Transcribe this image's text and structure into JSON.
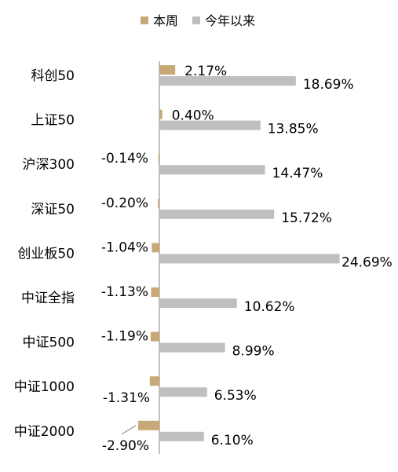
{
  "chart_data": {
    "type": "bar",
    "orientation": "horizontal",
    "categories": [
      "科创50",
      "上证50",
      "沪深300",
      "深证50",
      "创业板50",
      "中证全指",
      "中证500",
      "中证1000",
      "中证2000"
    ],
    "series": [
      {
        "name": "本周",
        "values": [
          2.17,
          0.4,
          -0.14,
          -0.2,
          -1.04,
          -1.13,
          -1.19,
          -1.31,
          -2.9
        ],
        "labels": [
          "2.17%",
          "0.40%",
          "-0.14%",
          "-0.20%",
          "-1.04%",
          "-1.13%",
          "-1.19%",
          "-1.31%",
          "-2.90%"
        ],
        "color": "#C9A878"
      },
      {
        "name": "今年以来",
        "values": [
          18.69,
          13.85,
          14.47,
          15.72,
          24.69,
          10.62,
          8.99,
          6.53,
          6.1
        ],
        "labels": [
          "18.69%",
          "13.85%",
          "14.47%",
          "15.72%",
          "24.69%",
          "10.62%",
          "8.99%",
          "6.53%",
          "6.10%"
        ],
        "color": "#BFBFBF"
      }
    ],
    "xlabel": "",
    "ylabel": "",
    "grid": false,
    "legend_position": "top-center"
  }
}
